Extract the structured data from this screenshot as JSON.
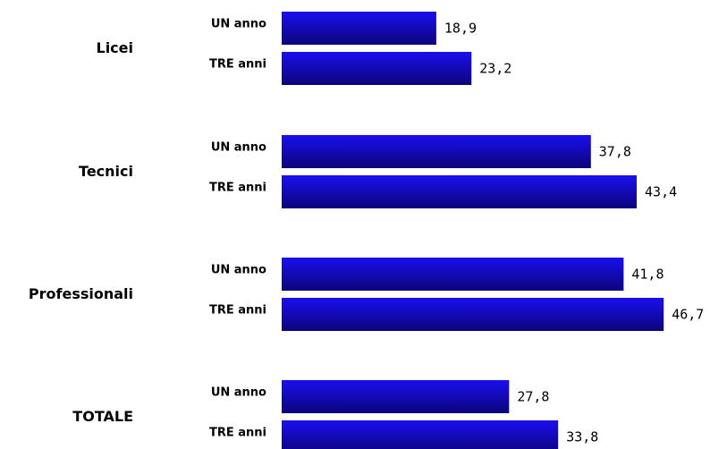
{
  "chart_data": {
    "type": "bar",
    "orientation": "horizontal",
    "categories": [
      "Licei",
      "Tecnici",
      "Professionali",
      "TOTALE"
    ],
    "series": [
      {
        "name": "UN anno",
        "values": [
          18.9,
          37.8,
          41.8,
          27.8
        ]
      },
      {
        "name": "TRE anni",
        "values": [
          23.2,
          43.4,
          46.7,
          33.8
        ]
      }
    ],
    "value_labels": [
      [
        "18,9",
        "23,2"
      ],
      [
        "37,8",
        "43,4"
      ],
      [
        "41,8",
        "46,7"
      ],
      [
        "27,8",
        "33,8"
      ]
    ],
    "title": "",
    "xlabel": "",
    "ylabel": "",
    "xlim": [
      0,
      50
    ],
    "grid": false,
    "legend": "none",
    "bar_color": "#1a0ff0",
    "bar_color_dark": "#0c047a"
  }
}
